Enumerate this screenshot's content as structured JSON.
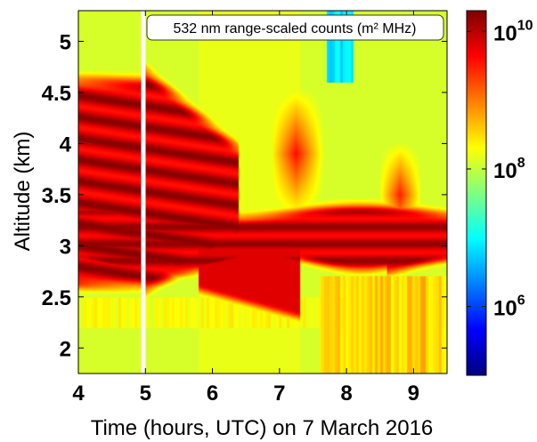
{
  "chart_data": {
    "type": "heatmap",
    "title": "532 nm range-scaled counts (m² MHz)",
    "xlabel": "Time (hours, UTC) on 7 March 2016",
    "ylabel": "Altitude (km)",
    "xlim": [
      4.0,
      9.5
    ],
    "ylim": [
      1.75,
      5.3
    ],
    "xticks": [
      "4",
      "5",
      "6",
      "7",
      "8",
      "9"
    ],
    "xtick_values": [
      4,
      5,
      6,
      7,
      8,
      9
    ],
    "yticks": [
      "2",
      "2.5",
      "3",
      "3.5",
      "4",
      "4.5",
      "5"
    ],
    "ytick_values": [
      2.0,
      2.5,
      3.0,
      3.5,
      4.0,
      4.5,
      5.0
    ],
    "colorbar": {
      "scale": "log",
      "range": [
        100000,
        20000000000
      ],
      "ticks": [
        {
          "value": 1000000,
          "base": "10",
          "exp": "6"
        },
        {
          "value": 100000000,
          "base": "10",
          "exp": "8"
        },
        {
          "value": 10000000000,
          "base": "10",
          "exp": "10"
        }
      ],
      "colormap": "jet"
    },
    "data_gap": {
      "time": 4.97
    },
    "features": [
      {
        "type": "dense_layer",
        "time_start": 4.0,
        "time_end": 9.5,
        "altitude_base_km": [
          2.75,
          3.05
        ],
        "altitude_top_km": [
          3.25,
          3.4
        ],
        "log10_counts": 9.8
      },
      {
        "type": "upper_layer",
        "time_start": 4.0,
        "time_end": 5.0,
        "altitude_base_km": 3.2,
        "altitude_top_km": 4.6,
        "log10_counts": 9.5
      },
      {
        "type": "upper_layer",
        "time_start": 5.0,
        "time_end": 6.1,
        "altitude_base_km": 3.1,
        "altitude_top_km": 4.8,
        "log10_counts": 9.3
      },
      {
        "type": "lower_layer",
        "time_start": 4.0,
        "time_end": 7.3,
        "altitude_base_km": 2.3,
        "altitude_top_km": 2.9,
        "log10_counts": 9.4
      }
    ]
  }
}
